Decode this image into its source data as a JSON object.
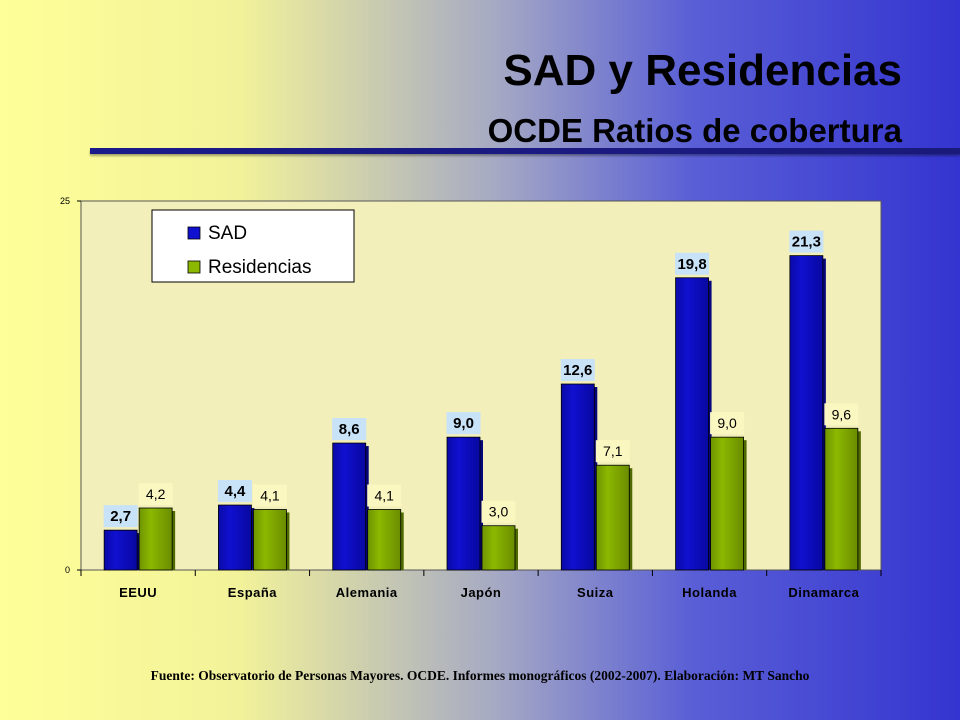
{
  "slide": {
    "title": "SAD y Residencias",
    "subtitle": "OCDE Ratios de cobertura",
    "source": "Fuente: Observatorio de Personas Mayores. OCDE. Informes monográficos (2002-2007). Elaboración: MT Sancho"
  },
  "colors": {
    "sad": "#1010d0",
    "residencias": "#8cb800",
    "plot_bg": "#f2efbb",
    "label_bg_sad": "#c8e2f8",
    "label_bg_res": "#fbf7c0"
  },
  "chart_data": {
    "type": "bar",
    "categories": [
      "EEUU",
      "España",
      "Alemania",
      "Japón",
      "Suiza",
      "Holanda",
      "Dinamarca"
    ],
    "series": [
      {
        "name": "SAD",
        "values": [
          2.7,
          4.4,
          8.6,
          9.0,
          12.6,
          19.8,
          21.3
        ],
        "labels": [
          "2,7",
          "4,4",
          "8,6",
          "9,0",
          "12,6",
          "19,8",
          "21,3"
        ]
      },
      {
        "name": "Residencias",
        "values": [
          4.2,
          4.1,
          4.1,
          3.0,
          7.1,
          9.0,
          9.6
        ],
        "labels": [
          "4,2",
          "4,1",
          "4,1",
          "3,0",
          "7,1",
          "9,0",
          "9,6"
        ]
      }
    ],
    "ylim": [
      0,
      25
    ],
    "yticks": [
      "0",
      "25"
    ],
    "legend_position": "top-left",
    "grid": false
  }
}
